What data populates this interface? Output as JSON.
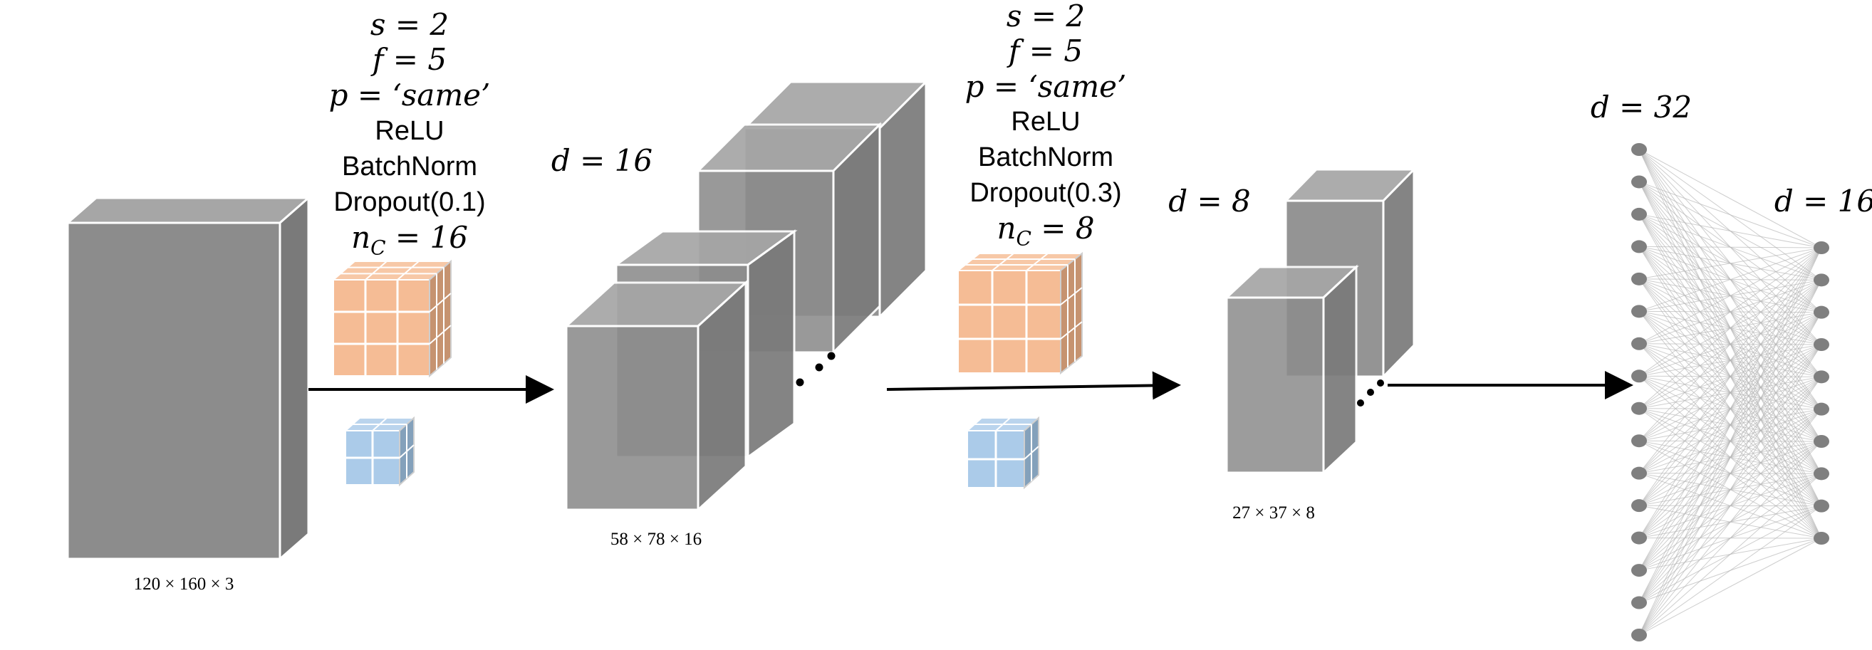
{
  "conv1": {
    "stride": "s  =  2",
    "filter": "f = 5",
    "padding": "p  = ‘same’",
    "activation": "ReLU",
    "norm": "BatchNorm",
    "dropout": "Dropout(0.1)",
    "channels": "n",
    "channels_sub": "C",
    "channels_val": " = 16"
  },
  "conv2": {
    "stride": "s  =  2",
    "filter": "f = 5",
    "padding": "p  = ‘same’",
    "activation": "ReLU",
    "norm": "BatchNorm",
    "dropout": "Dropout(0.3)",
    "channels": "n",
    "channels_sub": "C",
    "channels_val": " = 8"
  },
  "input": {
    "dims": "120 × 160 × 3"
  },
  "layer1": {
    "depth": "d = 16",
    "dims": "58 × 78 × 16"
  },
  "layer2": {
    "depth": "d = 8",
    "dims": "27 × 37 × 8"
  },
  "dense1": {
    "depth": "d = 32",
    "node_count": 16
  },
  "dense2": {
    "depth": "d = 16",
    "node_count": 10
  },
  "colors": {
    "volume_front": "#8c8c8c",
    "volume_top": "#a6a6a6",
    "volume_side": "#7a7a7a",
    "filter_orange": "#f4b183",
    "filter_blue": "#9dc3e6",
    "node": "#7f7f7f"
  }
}
